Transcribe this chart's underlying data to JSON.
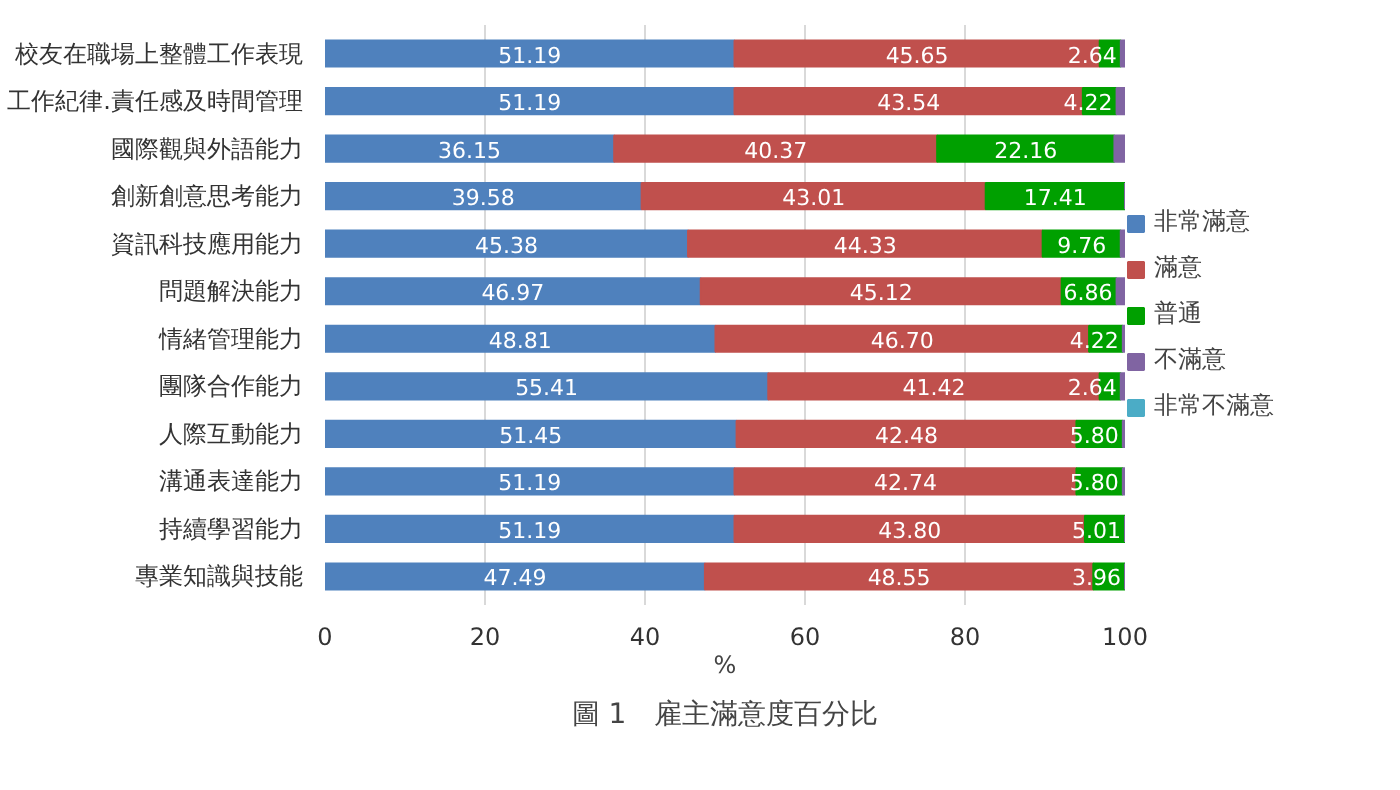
{
  "chart_data": {
    "type": "bar",
    "orientation": "horizontal",
    "stacked": true,
    "title": "圖 1　雇主滿意度百分比",
    "xlabel": "%",
    "categories": [
      "校友在職場上整體工作表現",
      "工作紀律.責任感及時間管理",
      "國際觀與外語能力",
      "創新創意思考能力",
      "資訊科技應用能力",
      "問題解決能力",
      "情緒管理能力",
      "團隊合作能力",
      "人際互動能力",
      "溝通表達能力",
      "持續學習能力",
      "專業知識與技能"
    ],
    "series": [
      {
        "name": "非常滿意",
        "color": "#4f81bd",
        "values": [
          51.19,
          51.19,
          36.15,
          39.58,
          45.38,
          46.97,
          48.81,
          55.41,
          51.45,
          51.19,
          51.19,
          47.49
        ],
        "value_labels": [
          "51.19",
          "51.19",
          "36.15",
          "39.58",
          "45.38",
          "46.97",
          "48.81",
          "55.41",
          "51.45",
          "51.19",
          "51.19",
          "47.49"
        ]
      },
      {
        "name": "滿意",
        "color": "#c0504d",
        "values": [
          45.65,
          43.54,
          40.37,
          43.01,
          44.33,
          45.12,
          46.7,
          41.42,
          42.48,
          42.74,
          43.8,
          48.55
        ],
        "value_labels": [
          "45.65",
          "43.54",
          "40.37",
          "43.01",
          "44.33",
          "45.12",
          "46.70",
          "41.42",
          "42.48",
          "42.74",
          "43.80",
          "48.55"
        ]
      },
      {
        "name": "普通",
        "color": "#00a000",
        "values": [
          2.64,
          4.22,
          22.16,
          17.41,
          9.76,
          6.86,
          4.22,
          2.64,
          5.8,
          5.8,
          5.01,
          3.96
        ],
        "value_labels": [
          "2.64",
          "4.22",
          "22.16",
          "17.41",
          "9.76",
          "6.86",
          "4.22",
          "2.64",
          "5.80",
          "5.80",
          "5.01",
          "3.96"
        ]
      },
      {
        "name": "不滿意",
        "color": "#8064a2",
        "values": [
          0.52,
          1.05,
          1.32,
          0,
          0.53,
          1.05,
          0.27,
          0.53,
          0.27,
          0.27,
          0,
          0
        ]
      },
      {
        "name": "非常不滿意",
        "color": "#4bacc6",
        "values": [
          null,
          null,
          null,
          null,
          null,
          null,
          null,
          null,
          null,
          null,
          null,
          null
        ]
      }
    ],
    "xlim": [
      0,
      100
    ],
    "xticks": [
      0,
      20,
      40,
      60,
      80,
      100
    ],
    "grid": "x",
    "legend": "right"
  }
}
